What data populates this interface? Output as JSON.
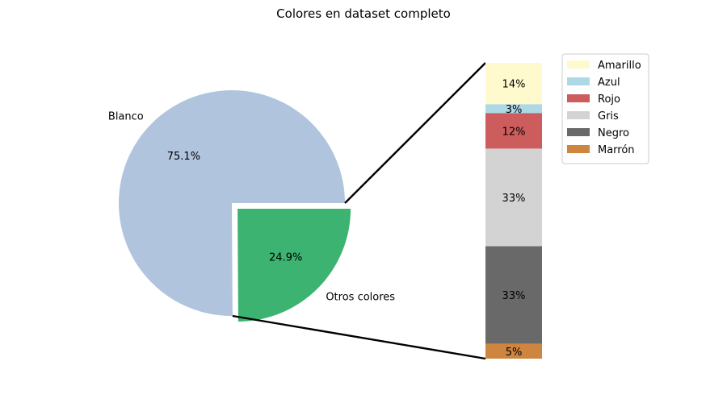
{
  "chart_data": [
    {
      "type": "pie",
      "title": "Colores en dataset completo",
      "slices": [
        {
          "label": "Blanco",
          "value": 75.1,
          "pct_label": "75.1%",
          "color": "#b0c4de"
        },
        {
          "label": "Otros colores",
          "value": 24.9,
          "pct_label": "24.9%",
          "color": "#3cb371",
          "exploded": true
        }
      ]
    },
    {
      "type": "bar",
      "stacked": true,
      "orientation": "vertical",
      "legend_position": "upper-right",
      "series": [
        {
          "name": "Amarillo",
          "value": 14,
          "label": "14%",
          "color": "#fffacd"
        },
        {
          "name": "Azul",
          "value": 3,
          "label": "3%",
          "color": "#add8e6"
        },
        {
          "name": "Rojo",
          "value": 12,
          "label": "12%",
          "color": "#cd5c5c"
        },
        {
          "name": "Gris",
          "value": 33,
          "label": "33%",
          "color": "#d3d3d3"
        },
        {
          "name": "Negro",
          "value": 33,
          "label": "33%",
          "color": "#696969"
        },
        {
          "name": "Marrón",
          "value": 5,
          "label": "5%",
          "color": "#cd853f"
        }
      ]
    }
  ]
}
